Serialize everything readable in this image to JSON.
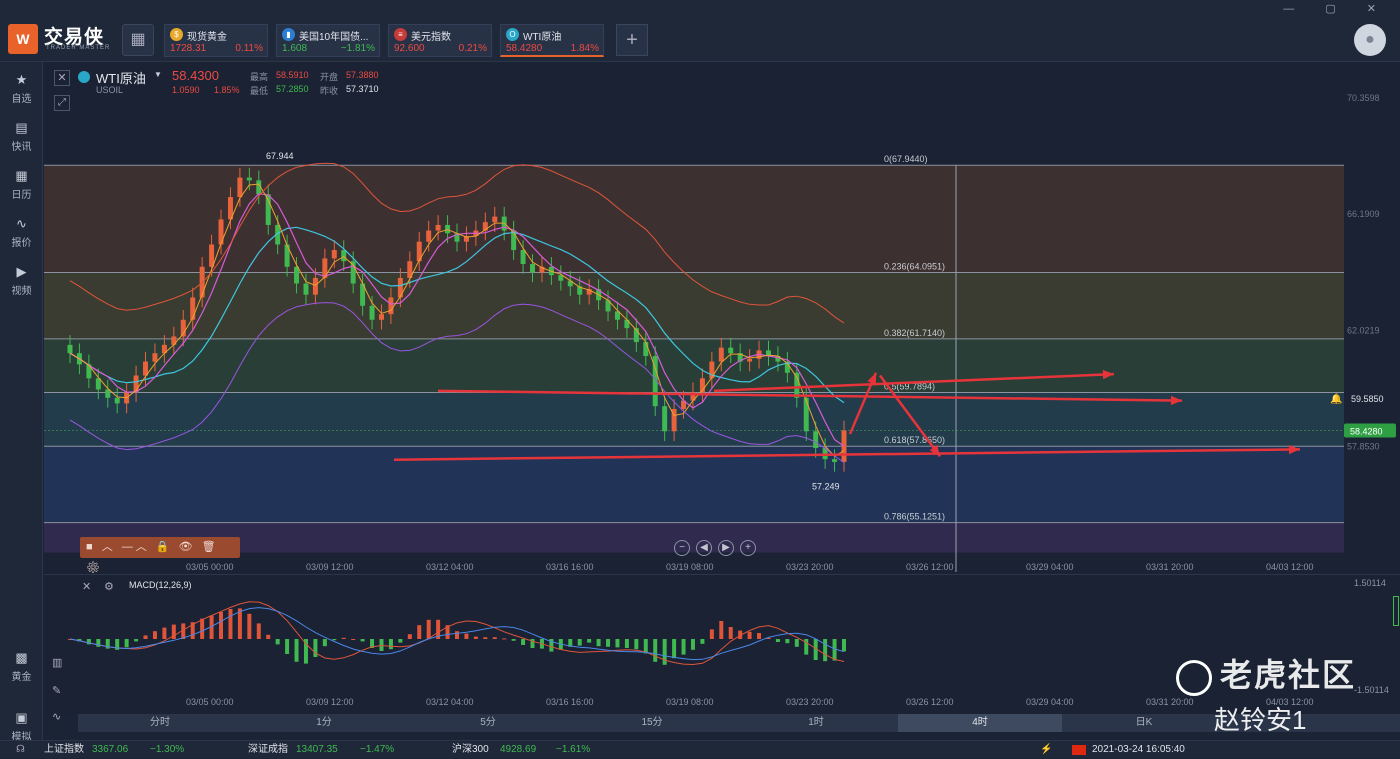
{
  "app": {
    "logo_glyph": "W",
    "title": "交易侠",
    "subtitle": "TRADER MASTER",
    "grid_icon": "grid-icon",
    "add_label": "+",
    "window_controls": "— ▢ ✕",
    "avatar_icon": "user-icon"
  },
  "tickers": [
    {
      "name": "现货黄金",
      "price": "1728.31",
      "change": "0.11%",
      "icon": "gold-icon",
      "glyph": "$",
      "color": "#e8a82a",
      "price_color": "#ec4a42",
      "change_color": "#ec4a42"
    },
    {
      "name": "美国10年国债...",
      "price": "1.608",
      "change": "−1.81%",
      "icon": "bond-icon",
      "glyph": "▮",
      "color": "#2b7fd3",
      "price_color": "#3fb950",
      "change_color": "#3fb950"
    },
    {
      "name": "美元指数",
      "price": "92.600",
      "change": "0.21%",
      "icon": "us-flag-icon",
      "glyph": "≡",
      "color": "#c73a3a",
      "price_color": "#ec4a42",
      "change_color": "#ec4a42"
    },
    {
      "name": "WTI原油",
      "price": "58.4280",
      "change": "1.84%",
      "icon": "oil-icon",
      "glyph": "O",
      "color": "#2aa6c9",
      "price_color": "#ec4a42",
      "change_color": "#ec4a42"
    }
  ],
  "sidebar": [
    {
      "label": "自选",
      "icon": "star-icon",
      "glyph": "★"
    },
    {
      "label": "快讯",
      "icon": "news-icon",
      "glyph": "▤"
    },
    {
      "label": "日历",
      "icon": "calendar-icon",
      "glyph": "▦"
    },
    {
      "label": "报价",
      "icon": "quote-icon",
      "glyph": "∿"
    },
    {
      "label": "视频",
      "icon": "video-icon",
      "glyph": "▶"
    },
    {
      "label": "黄金",
      "icon": "gold-bars-icon",
      "glyph": "▩"
    },
    {
      "label": "模拟",
      "icon": "simulate-icon",
      "glyph": "▣"
    }
  ],
  "header": {
    "symbol": "WTI原油",
    "code": "USOIL",
    "price": "58.4300",
    "change": "1.0590",
    "change_pct": "1.85%",
    "high_label": "最高",
    "high": "58.5910",
    "open_label": "开盘",
    "open": "57.3880",
    "low_label": "最低",
    "low": "57.2850",
    "prev_label": "昨收",
    "prev": "57.3710"
  },
  "price_axis": [
    "70.3598",
    "66.1909",
    "62.0219",
    "57.8530"
  ],
  "fib_levels": [
    {
      "label": "0(67.9440)",
      "value": 67.944
    },
    {
      "label": "0.236(64.0951)",
      "value": 64.0951
    },
    {
      "label": "0.382(61.7140)",
      "value": 61.714
    },
    {
      "label": "0.5(59.7894)",
      "value": 59.7894
    },
    {
      "label": "0.618(57.8650)",
      "value": 57.865
    },
    {
      "label": "0.786(55.1251)",
      "value": 55.1251
    }
  ],
  "current_price_tag": "58.4280",
  "alert_price": "59.5850",
  "high_mark": "67.944",
  "low_mark": "57.249",
  "x_axis": [
    "03/05 00:00",
    "03/09 12:00",
    "03/12 04:00",
    "03/16 16:00",
    "03/19 08:00",
    "03/23 20:00",
    "03/26 12:00",
    "03/29 04:00",
    "03/31 20:00",
    "04/03 12:00"
  ],
  "macd": {
    "label": "MACD(12,26,9)",
    "axis_top": "1.50114",
    "axis_bottom": "-1.50114"
  },
  "timeframes": [
    "分时",
    "1分",
    "5分",
    "15分",
    "1时",
    "4时",
    "日K"
  ],
  "active_timeframe": "4时",
  "drawing_toolbar": "■ ︿ —︿ 🔒 👁 🗑 ⚙",
  "nav_buttons": [
    "−",
    "◀",
    "▶",
    "+"
  ],
  "status": {
    "sh_label": "上证指数",
    "sh_value": "3367.06",
    "sh_change": "−1.30%",
    "sz_label": "深证成指",
    "sz_value": "13407.35",
    "sz_change": "−1.47%",
    "hs_label": "沪深300",
    "hs_value": "4928.69",
    "hs_change": "−1.61%",
    "datetime": "2021-03-24 16:05:40",
    "region_flag": "cn-flag-icon"
  },
  "watermark": {
    "line1": "老虎社区",
    "line2": "赵铃安1"
  },
  "chart_data": {
    "type": "candlestick",
    "x_labels": [
      "03/05 00:00",
      "03/09 12:00",
      "03/12 04:00",
      "03/16 16:00",
      "03/19 08:00",
      "03/23 20:00"
    ],
    "close": [
      61.2,
      60.8,
      60.3,
      59.9,
      59.6,
      59.4,
      59.8,
      60.4,
      60.9,
      61.2,
      61.5,
      61.8,
      62.4,
      63.2,
      64.3,
      65.1,
      66.0,
      66.8,
      67.5,
      67.4,
      66.9,
      65.8,
      65.1,
      64.3,
      63.7,
      63.3,
      63.9,
      64.6,
      64.9,
      64.5,
      63.7,
      62.9,
      62.4,
      62.6,
      63.2,
      63.9,
      64.5,
      65.2,
      65.6,
      65.8,
      65.5,
      65.2,
      65.4,
      65.6,
      65.9,
      66.1,
      65.6,
      64.9,
      64.4,
      64.1,
      64.3,
      64.0,
      63.8,
      63.6,
      63.3,
      63.5,
      63.1,
      62.7,
      62.4,
      62.1,
      61.6,
      61.1,
      59.3,
      58.4,
      59.2,
      59.5,
      59.8,
      60.3,
      60.9,
      61.4,
      61.2,
      60.9,
      61.0,
      61.3,
      61.1,
      60.9,
      60.5,
      59.6,
      58.4,
      57.8,
      57.4,
      57.3,
      58.43
    ],
    "ylim": [
      54.5,
      71.0
    ]
  }
}
